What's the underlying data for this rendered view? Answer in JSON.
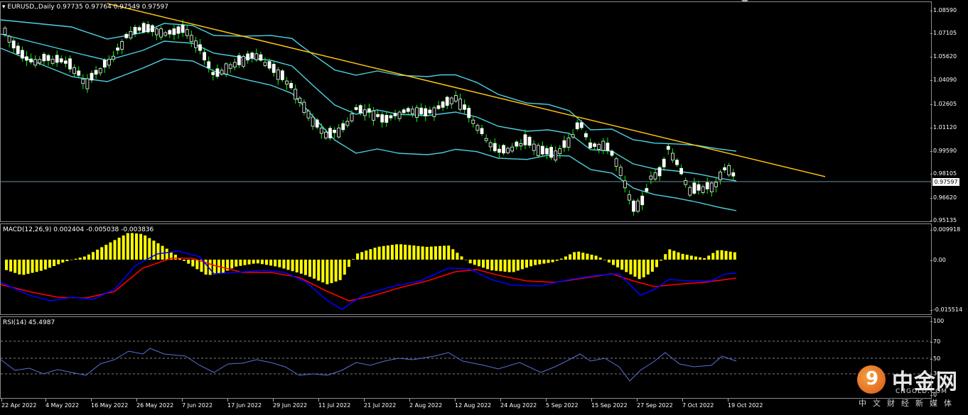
{
  "main": {
    "symbol_label": "EURUSD,,Daily",
    "ohlc_label": "0.97735 0.97764 0.97549 0.97597",
    "price_axis": [
      "1.08590",
      "1.07105",
      "1.05620",
      "1.04090",
      "1.02605",
      "1.01120",
      "0.99590",
      "0.98105",
      "0.96620",
      "0.95135"
    ],
    "current_price": "0.97597"
  },
  "macd": {
    "label": "MACD(12,26,9) 0.002404 -0.005038 -0.003836",
    "axis": [
      "0.009918",
      "0.00",
      "-0.015514"
    ]
  },
  "rsi": {
    "label": "RSI(14) 45.4987",
    "axis": [
      "100",
      "70",
      "50",
      "30",
      "0"
    ]
  },
  "time_axis": [
    "22 Apr 2022",
    "4 May 2022",
    "16 May 2022",
    "26 May 2022",
    "7 Jun 2022",
    "17 Jun 2022",
    "29 Jun 2022",
    "11 Jul 2022",
    "21 Jul 2022",
    "2 Aug 2022",
    "12 Aug 2022",
    "24 Aug 2022",
    "5 Sep 2022",
    "15 Sep 2022",
    "27 Sep 2022",
    "7 Oct 2022",
    "19 Oct 2022"
  ],
  "watermark": {
    "glyph": "9",
    "name_cn": "中金网",
    "domain": "CNGOLD.COM",
    "tagline": "中文财经新媒体"
  },
  "colors": {
    "background": "#000000",
    "candle_up": "#ffffff",
    "candle_down": "#ffffff",
    "wick": "#00ff00",
    "bollinger": "#4dd2e0",
    "trendline": "#ffc20e",
    "macd_hist": "#ffff00",
    "macd_line": "#0000ff",
    "signal_line": "#ff0000",
    "rsi_line": "#5b6fd6"
  }
}
